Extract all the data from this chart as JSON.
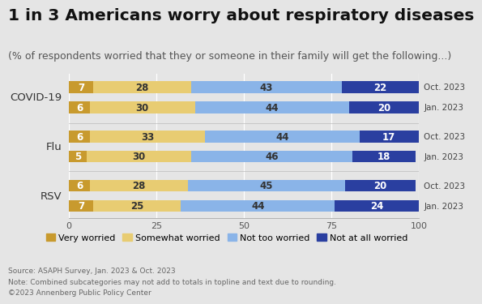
{
  "title": "1 in 3 Americans worry about respiratory diseases",
  "subtitle": "(% of respondents worried that they or someone in their family will get the following...)",
  "background_color": "#e5e5e5",
  "plot_bg_color": "#e5e5e5",
  "rows": [
    {
      "label": "Oct. 2023",
      "disease": "COVID-19",
      "values": [
        7,
        28,
        43,
        22
      ]
    },
    {
      "label": "Jan. 2023",
      "disease": "COVID-19",
      "values": [
        6,
        30,
        44,
        20
      ]
    },
    {
      "label": "Oct. 2023",
      "disease": "Flu",
      "values": [
        6,
        33,
        44,
        17
      ]
    },
    {
      "label": "Jan. 2023",
      "disease": "Flu",
      "values": [
        5,
        30,
        46,
        18
      ]
    },
    {
      "label": "Oct. 2023",
      "disease": "RSV",
      "values": [
        6,
        28,
        45,
        20
      ]
    },
    {
      "label": "Jan. 2023",
      "disease": "RSV",
      "values": [
        7,
        25,
        44,
        24
      ]
    }
  ],
  "colors": [
    "#c89a2e",
    "#e8cc72",
    "#8ab4e8",
    "#2a3fa0"
  ],
  "legend_labels": [
    "Very worried",
    "Somewhat worried",
    "Not too worried",
    "Not at all worried"
  ],
  "source_text": "Source: ASAPH Survey, Jan. 2023 & Oct. 2023\nNote: Combined subcategories may not add to totals in topline and text due to rounding.\n©2023 Annenberg Public Policy Center",
  "title_fontsize": 14.5,
  "subtitle_fontsize": 9,
  "axis_label_fontsize": 8,
  "bar_label_fontsize": 8.5,
  "row_label_fontsize": 7.5,
  "disease_label_fontsize": 9.5,
  "source_fontsize": 6.5,
  "legend_fontsize": 8
}
